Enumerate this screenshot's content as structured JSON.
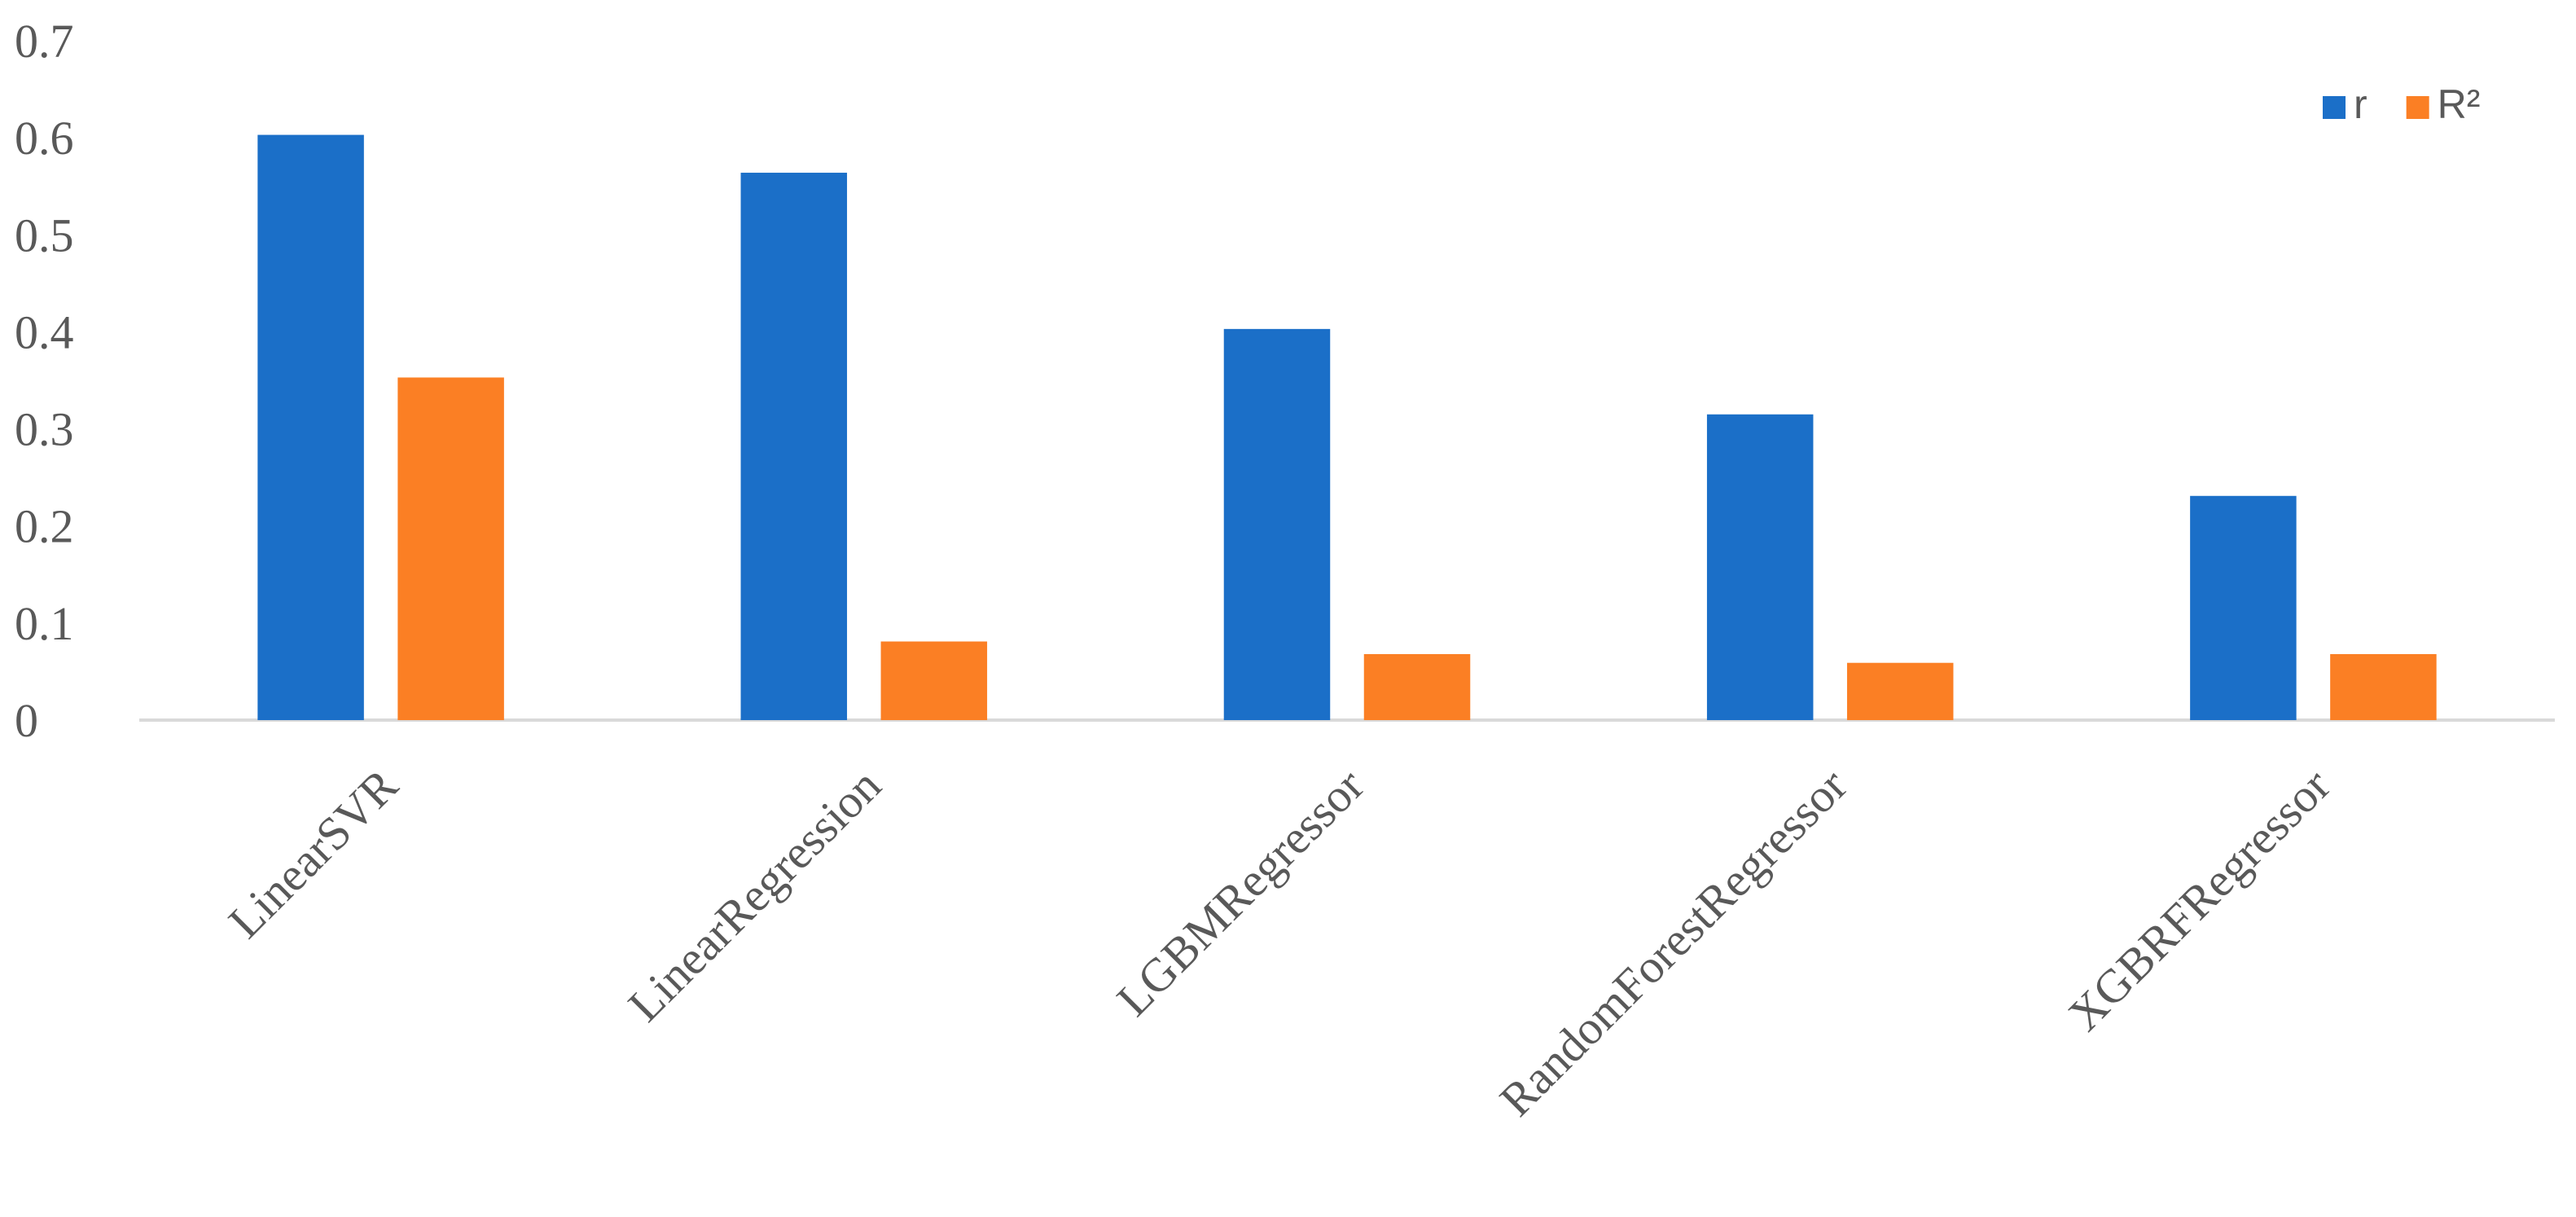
{
  "chart_data": {
    "type": "bar",
    "categories": [
      "LinearSVR",
      "LinearRegression",
      "LGBMRegressor",
      "RandomForestRegressor",
      "XGBRFRegressor"
    ],
    "series": [
      {
        "name": "r",
        "color": "#1b6fc8",
        "values": [
          0.603,
          0.564,
          0.403,
          0.315,
          0.231
        ]
      },
      {
        "name": "R²",
        "color": "#fb7f24",
        "values": [
          0.353,
          0.081,
          0.068,
          0.059,
          0.068
        ]
      }
    ],
    "ylim": [
      0,
      0.7
    ],
    "yticks": [
      0,
      0.1,
      0.2,
      0.3,
      0.4,
      0.5,
      0.6,
      0.7
    ],
    "grid": false,
    "legend": "top-right"
  }
}
